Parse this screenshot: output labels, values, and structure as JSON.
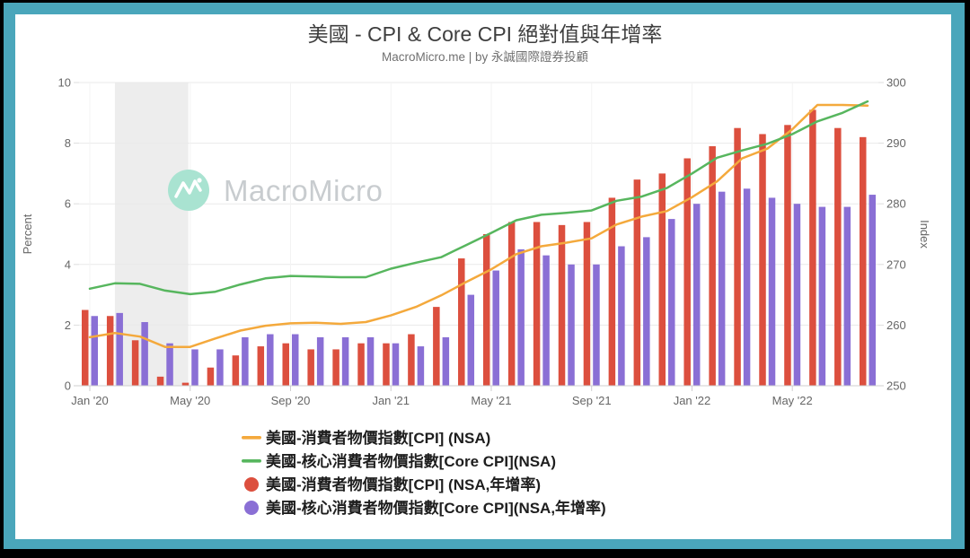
{
  "frame": {
    "border_color": "#4aa6bb",
    "outer_background": "#000000",
    "canvas_background": "#ffffff"
  },
  "watermark": {
    "text": "MacroMicro",
    "logo_color": "#a9e3d1"
  },
  "chart_data": {
    "type": "combo",
    "title": "美國 - CPI & Core CPI 絕對值與年增率",
    "subtitle": "MacroMicro.me | by 永誠國際證券投顧",
    "x": [
      "2020-01",
      "2020-02",
      "2020-03",
      "2020-04",
      "2020-05",
      "2020-06",
      "2020-07",
      "2020-08",
      "2020-09",
      "2020-10",
      "2020-11",
      "2020-12",
      "2021-01",
      "2021-02",
      "2021-03",
      "2021-04",
      "2021-05",
      "2021-06",
      "2021-07",
      "2021-08",
      "2021-09",
      "2021-10",
      "2021-11",
      "2021-12",
      "2022-01",
      "2022-02",
      "2022-03",
      "2022-04",
      "2022-05",
      "2022-06",
      "2022-07",
      "2022-08"
    ],
    "x_tick_indices": [
      0,
      4,
      8,
      12,
      16,
      20,
      24,
      28
    ],
    "x_tick_labels": [
      "Jan '20",
      "May '20",
      "Sep '20",
      "Jan '21",
      "May '21",
      "Sep '21",
      "Jan '22",
      "May '22"
    ],
    "left_axis": {
      "label": "Percent",
      "min": 0,
      "max": 10,
      "ticks": [
        0,
        2,
        4,
        6,
        8,
        10
      ]
    },
    "right_axis": {
      "label": "Index",
      "min": 250,
      "max": 300,
      "ticks": [
        250,
        260,
        270,
        280,
        290,
        300
      ]
    },
    "grid": true,
    "legend_position": "bottom",
    "recession_band": {
      "from": "2020-02",
      "to": "2020-05",
      "color": "#ededed"
    },
    "series": [
      {
        "id": "cpi-index",
        "legend_label": "美國-消費者物價指數[CPI] (NSA)",
        "type": "line",
        "axis": "right",
        "color": "#f4a93c",
        "values": [
          258.0,
          258.7,
          258.1,
          256.4,
          256.4,
          257.8,
          259.1,
          259.9,
          260.3,
          260.4,
          260.2,
          260.5,
          261.6,
          263.0,
          264.9,
          267.1,
          269.2,
          271.7,
          273.0,
          273.6,
          274.3,
          276.6,
          277.9,
          278.8,
          281.1,
          283.7,
          287.5,
          289.1,
          292.3,
          296.3,
          296.3,
          296.2
        ]
      },
      {
        "id": "core-cpi-index",
        "legend_label": "美國-核心消費者物價指數[Core CPI](NSA)",
        "type": "line",
        "axis": "right",
        "color": "#57b65e",
        "values": [
          266.0,
          266.9,
          266.8,
          265.7,
          265.1,
          265.5,
          266.7,
          267.7,
          268.1,
          268.0,
          267.9,
          267.9,
          269.3,
          270.3,
          271.2,
          273.2,
          275.2,
          277.3,
          278.2,
          278.5,
          278.9,
          280.5,
          281.2,
          282.6,
          285.0,
          287.6,
          288.8,
          289.9,
          291.5,
          293.6,
          295.0,
          296.9
        ]
      },
      {
        "id": "cpi-yoy",
        "legend_label": "美國-消費者物價指數[CPI] (NSA,年增率)",
        "type": "bar",
        "axis": "left",
        "color": "#dc4f3e",
        "values": [
          2.5,
          2.3,
          1.5,
          0.3,
          0.1,
          0.6,
          1.0,
          1.3,
          1.4,
          1.2,
          1.2,
          1.4,
          1.4,
          1.7,
          2.6,
          4.2,
          5.0,
          5.4,
          5.4,
          5.3,
          5.4,
          6.2,
          6.8,
          7.0,
          7.5,
          7.9,
          8.5,
          8.3,
          8.6,
          9.1,
          8.5,
          8.2
        ]
      },
      {
        "id": "core-cpi-yoy",
        "legend_label": "美國-核心消費者物價指數[Core CPI](NSA,年增率)",
        "type": "bar",
        "axis": "left",
        "color": "#8a6fd5",
        "values": [
          2.3,
          2.4,
          2.1,
          1.4,
          1.2,
          1.2,
          1.6,
          1.7,
          1.7,
          1.6,
          1.6,
          1.6,
          1.4,
          1.3,
          1.6,
          3.0,
          3.8,
          4.5,
          4.3,
          4.0,
          4.0,
          4.6,
          4.9,
          5.5,
          6.0,
          6.4,
          6.5,
          6.2,
          6.0,
          5.9,
          5.9,
          6.3
        ]
      }
    ]
  }
}
